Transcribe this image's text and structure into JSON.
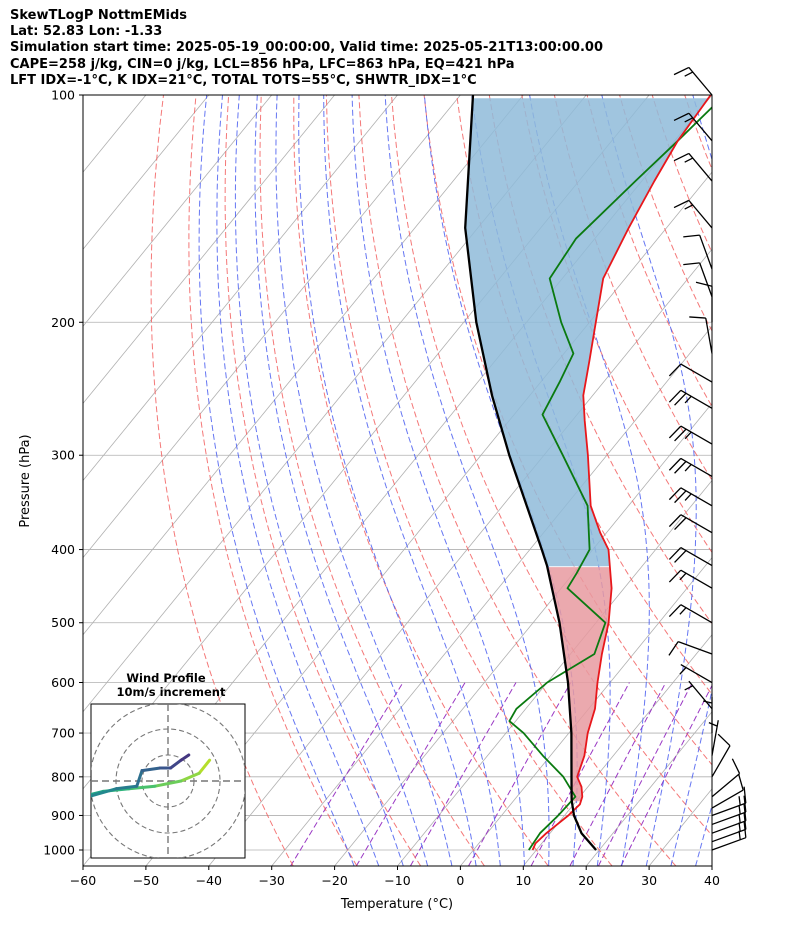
{
  "header": {
    "lines": [
      "SkewTLogP NottmEMids",
      "Lat: 52.83   Lon: -1.33",
      "Simulation start time: 2025-05-19_00:00:00, Valid time: 2025-05-21T13:00:00.00",
      "CAPE=258 j/kg, CIN=0 j/kg, LCL=856 hPa, LFC=863 hPa, EQ=421 hPa",
      "LFT IDX=-1°C, K IDX=21°C, TOTAL TOTS=55°C, SHWTR_IDX=1°C"
    ]
  },
  "chart_data": {
    "type": "line",
    "subtype": "skewt-logp",
    "xlabel": "Temperature (°C)",
    "ylabel": "Pressure (hPa)",
    "xlim": [
      -60,
      40
    ],
    "ylim": [
      1050,
      100
    ],
    "x_ticks": [
      -60,
      -50,
      -40,
      -30,
      -20,
      -10,
      0,
      10,
      20,
      30,
      40
    ],
    "x_tick_labels": [
      "−60",
      "−50",
      "−40",
      "−30",
      "−20",
      "−10",
      "0",
      "10",
      "20",
      "30",
      "40"
    ],
    "y_ticks": [
      1000,
      900,
      800,
      700,
      600,
      500,
      400,
      300,
      200,
      100
    ],
    "y_tick_labels": [
      "1000",
      "900",
      "800",
      "700",
      "600",
      "500",
      "400",
      "300",
      "200",
      "100"
    ],
    "grid": true,
    "colors": {
      "temperature": "#e8171b",
      "dewpoint": "#0a7a10",
      "parcel": "#000000",
      "cape_fill": "#e89aa0",
      "cin_fill": "#8fbbd9",
      "dry_adiabat": "#f26060",
      "moist_adiabat": "#4a5ef0",
      "mixing_ratio": "#9a38c4",
      "grid": "#b0b0b0"
    },
    "series": [
      {
        "name": "Temperature",
        "points": [
          [
            1000,
            9.4
          ],
          [
            980,
            9.0
          ],
          [
            950,
            9.4
          ],
          [
            925,
            10.0
          ],
          [
            900,
            10.6
          ],
          [
            870,
            11.0
          ],
          [
            850,
            10.4
          ],
          [
            825,
            9.0
          ],
          [
            800,
            7.0
          ],
          [
            750,
            5.4
          ],
          [
            700,
            3.0
          ],
          [
            650,
            1.0
          ],
          [
            600,
            -2.0
          ],
          [
            550,
            -5.0
          ],
          [
            500,
            -8.0
          ],
          [
            450,
            -12.0
          ],
          [
            400,
            -17.5
          ],
          [
            380,
            -21.0
          ],
          [
            350,
            -26.0
          ],
          [
            300,
            -33.0
          ],
          [
            270,
            -38.0
          ],
          [
            250,
            -41.5
          ],
          [
            225,
            -45.0
          ],
          [
            200,
            -49.0
          ],
          [
            175,
            -53.5
          ],
          [
            150,
            -56.0
          ],
          [
            130,
            -58.0
          ],
          [
            115,
            -59.5
          ],
          [
            100,
            -60.2
          ]
        ]
      },
      {
        "name": "Dewpoint",
        "points": [
          [
            1000,
            8.8
          ],
          [
            950,
            8.4
          ],
          [
            900,
            9.0
          ],
          [
            850,
            9.3
          ],
          [
            800,
            4.8
          ],
          [
            750,
            -1.2
          ],
          [
            700,
            -7.2
          ],
          [
            675,
            -11.0
          ],
          [
            650,
            -11.5
          ],
          [
            600,
            -10.0
          ],
          [
            550,
            -6.2
          ],
          [
            500,
            -8.5
          ],
          [
            450,
            -19.0
          ],
          [
            430,
            -19.5
          ],
          [
            400,
            -20.5
          ],
          [
            350,
            -26.5
          ],
          [
            300,
            -37.0
          ],
          [
            265,
            -45.5
          ],
          [
            240,
            -47.0
          ],
          [
            220,
            -48.5
          ],
          [
            200,
            -54.5
          ],
          [
            175,
            -62.0
          ],
          [
            155,
            -63.0
          ],
          [
            130,
            -61.0
          ],
          [
            115,
            -59.5
          ],
          [
            100,
            -58.0
          ]
        ]
      },
      {
        "name": "Parcel",
        "points": [
          [
            1000,
            19.5
          ],
          [
            950,
            15.0
          ],
          [
            900,
            11.5
          ],
          [
            860,
            9.2
          ],
          [
            850,
            8.7
          ],
          [
            800,
            6.1
          ],
          [
            700,
            0.4
          ],
          [
            600,
            -6.7
          ],
          [
            500,
            -15.8
          ],
          [
            420,
            -25.2
          ],
          [
            400,
            -28.1
          ],
          [
            300,
            -45.5
          ],
          [
            250,
            -56.0
          ],
          [
            200,
            -68.0
          ],
          [
            150,
            -82.0
          ],
          [
            100,
            -98.0
          ]
        ]
      }
    ],
    "wind_barbs": {
      "pressures_hPa": [
        100,
        115,
        130,
        150,
        170,
        185,
        200,
        220,
        240,
        260,
        290,
        320,
        350,
        380,
        420,
        450,
        500,
        550,
        600,
        650,
        700,
        750,
        800,
        850,
        880,
        900,
        925,
        950,
        975,
        1000
      ],
      "speeds_kt": [
        15,
        15,
        15,
        15,
        10,
        10,
        10,
        10,
        10,
        25,
        25,
        25,
        25,
        20,
        20,
        15,
        15,
        10,
        5,
        5,
        5,
        5,
        10,
        10,
        10,
        15,
        15,
        15,
        15,
        15
      ],
      "directions_deg": [
        320,
        320,
        320,
        320,
        340,
        340,
        0,
        350,
        300,
        300,
        300,
        300,
        300,
        300,
        300,
        300,
        300,
        290,
        300,
        320,
        0,
        10,
        30,
        50,
        60,
        70,
        70,
        70,
        70,
        70
      ]
    },
    "hodograph": {
      "title": "Wind Profile",
      "subtitle": "10m/s increment",
      "ring_speeds_ms": [
        10,
        20,
        30
      ],
      "trace_uv_ms": [
        [
          16,
          8
        ],
        [
          12,
          3
        ],
        [
          5,
          0
        ],
        [
          -5,
          -2
        ],
        [
          -15,
          -3
        ],
        [
          -25,
          -4
        ],
        [
          -33,
          -6
        ],
        [
          -34,
          -7
        ],
        [
          -20,
          -3
        ],
        [
          -12,
          -2
        ],
        [
          -10,
          4
        ],
        [
          -3,
          5
        ],
        [
          1,
          5
        ],
        [
          5,
          8
        ],
        [
          8,
          10
        ]
      ]
    }
  }
}
